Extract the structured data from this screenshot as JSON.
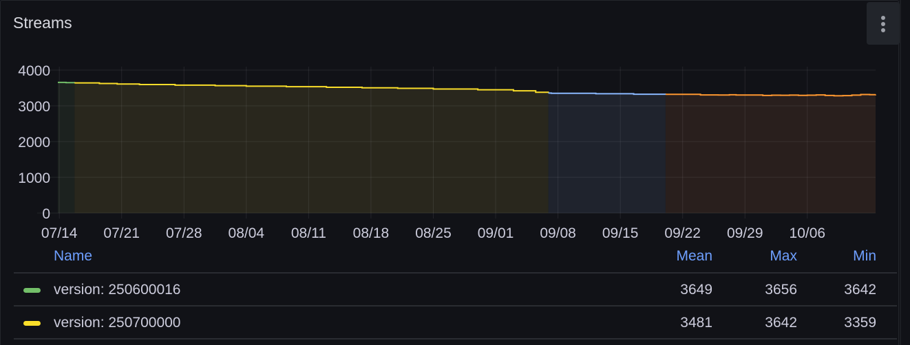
{
  "panel": {
    "title": "Streams",
    "menu_icon": "kebab-menu-icon"
  },
  "chart_data": {
    "type": "area",
    "title": "Streams",
    "xlabel": "",
    "ylabel": "",
    "ylim": [
      0,
      4000
    ],
    "yticks": [
      "0",
      "1000",
      "2000",
      "3000",
      "4000"
    ],
    "xticks": [
      "07/14",
      "07/21",
      "07/28",
      "08/04",
      "08/11",
      "08/18",
      "08/25",
      "09/01",
      "09/08",
      "09/15",
      "09/22",
      "09/29",
      "10/06"
    ],
    "xrange": [
      "07/13 20:00",
      "10/13 16:00"
    ],
    "grid": true,
    "step": true,
    "series": [
      {
        "name": "version: 250600016",
        "color": "#73bf69",
        "fill": "#1c221f",
        "points": [
          [
            "07/13 20:00",
            3656
          ],
          [
            "07/14 18:00",
            3649
          ],
          [
            "07/15 17:00",
            3642
          ]
        ]
      },
      {
        "name": "version: 250700000",
        "color": "#fade2a",
        "fill": "#29271d",
        "points": [
          [
            "07/15 17:00",
            3642
          ],
          [
            "07/18 12:00",
            3625
          ],
          [
            "07/20 12:00",
            3610
          ],
          [
            "07/23 00:00",
            3595
          ],
          [
            "07/27 00:00",
            3580
          ],
          [
            "07/31 12:00",
            3565
          ],
          [
            "08/04 00:00",
            3550
          ],
          [
            "08/08 12:00",
            3535
          ],
          [
            "08/13 00:00",
            3520
          ],
          [
            "08/17 00:00",
            3505
          ],
          [
            "08/21 00:00",
            3490
          ],
          [
            "08/25 00:00",
            3470
          ],
          [
            "08/30 00:00",
            3450
          ],
          [
            "09/03 00:00",
            3420
          ],
          [
            "09/05 12:00",
            3380
          ],
          [
            "09/06 22:00",
            3359
          ]
        ]
      },
      {
        "color": "#8ab8ff",
        "fill": "#1f232d",
        "points": [
          [
            "09/06 22:00",
            3359
          ],
          [
            "09/07 06:00",
            3350
          ],
          [
            "09/12 06:00",
            3340
          ],
          [
            "09/16 12:00",
            3325
          ],
          [
            "09/20 02:00",
            3322
          ]
        ]
      },
      {
        "color": "#ff9830",
        "fill": "#291f1d",
        "points": [
          [
            "09/20 02:00",
            3322
          ],
          [
            "09/23 06:00",
            3322
          ],
          [
            "09/24 00:00",
            3305
          ],
          [
            "09/26 00:00",
            3302
          ],
          [
            "09/27 06:00",
            3310
          ],
          [
            "09/28 00:00",
            3302
          ],
          [
            "09/30 00:00",
            3302
          ],
          [
            "10/01 00:00",
            3290
          ],
          [
            "10/02 00:00",
            3298
          ],
          [
            "10/03 00:00",
            3296
          ],
          [
            "10/04 00:00",
            3300
          ],
          [
            "10/05 00:00",
            3294
          ],
          [
            "10/06 00:00",
            3298
          ],
          [
            "10/07 00:00",
            3305
          ],
          [
            "10/08 00:00",
            3290
          ],
          [
            "10/09 00:00",
            3282
          ],
          [
            "10/10 00:00",
            3285
          ],
          [
            "10/11 00:00",
            3300
          ],
          [
            "10/12 00:00",
            3318
          ],
          [
            "10/13 00:00",
            3312
          ],
          [
            "10/13 16:00",
            3318
          ]
        ]
      }
    ]
  },
  "legend": {
    "headers": {
      "name": "Name",
      "mean": "Mean",
      "max": "Max",
      "min": "Min"
    },
    "rows": [
      {
        "name": "version: 250600016",
        "color": "#73bf69",
        "mean": "3649",
        "max": "3656",
        "min": "3642"
      },
      {
        "name": "version: 250700000",
        "color": "#fade2a",
        "mean": "3481",
        "max": "3642",
        "min": "3359"
      }
    ]
  }
}
